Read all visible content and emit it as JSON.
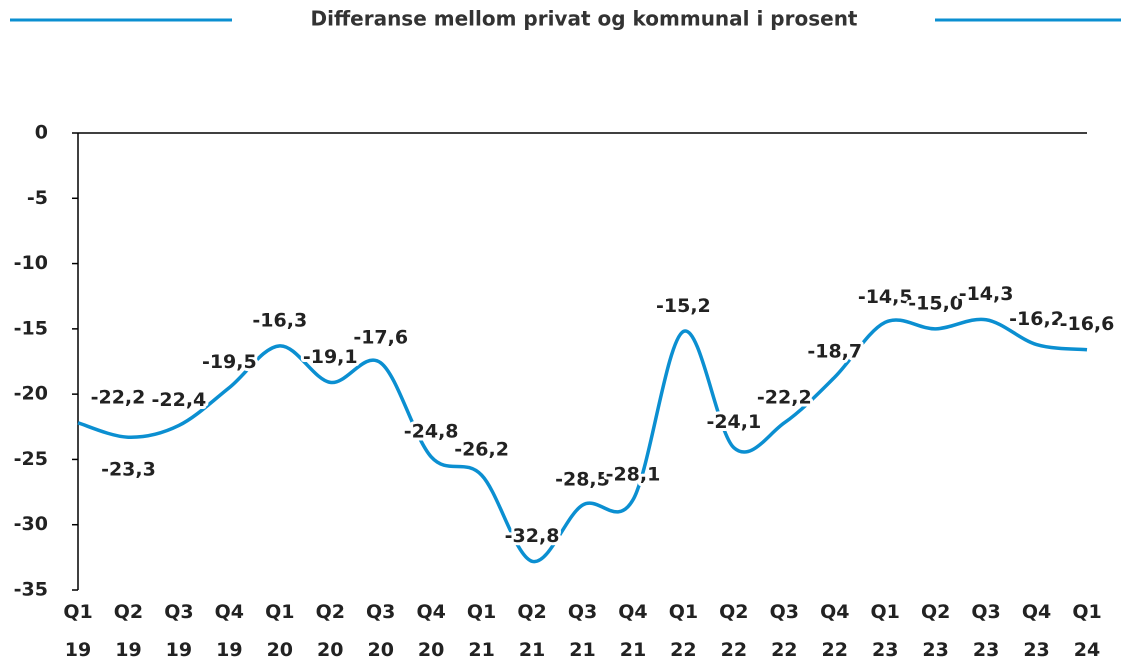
{
  "chart_data": {
    "type": "line",
    "title": "Differanse mellom privat og kommunal i prosent",
    "categories": [
      "Q1 19",
      "Q2 19",
      "Q3 19",
      "Q4 19",
      "Q1 20",
      "Q2 20",
      "Q3 20",
      "Q4 20",
      "Q1 21",
      "Q2 21",
      "Q3 21",
      "Q4 21",
      "Q1 22",
      "Q2 22",
      "Q3 22",
      "Q4 22",
      "Q1 23",
      "Q2 23",
      "Q3 23",
      "Q4 23",
      "Q1 24"
    ],
    "series": [
      {
        "name": "Differanse",
        "color": "#0b8fd1",
        "values": [
          -22.2,
          -23.3,
          -22.4,
          -19.5,
          -16.3,
          -19.1,
          -17.6,
          -24.8,
          -26.2,
          -32.8,
          -28.5,
          -28.1,
          -15.2,
          -24.1,
          -22.2,
          -18.7,
          -14.5,
          -15.0,
          -14.3,
          -16.2,
          -16.6
        ],
        "value_labels": [
          "-22,2",
          "-23,3",
          "-22,4",
          "-19,5",
          "-16,3",
          "-19,1",
          "-17,6",
          "-24,8",
          "-26,2",
          "-32,8",
          "-28,5",
          "-28,1",
          "-15,2",
          "-24,1",
          "-22,2",
          "-18,7",
          "-14,5",
          "-15,0",
          "-14,3",
          "-16,2",
          "-16,6"
        ]
      }
    ],
    "ylim": [
      -35,
      0
    ],
    "yticks": [
      0,
      -5,
      -10,
      -15,
      -20,
      -25,
      -30,
      -35
    ]
  }
}
